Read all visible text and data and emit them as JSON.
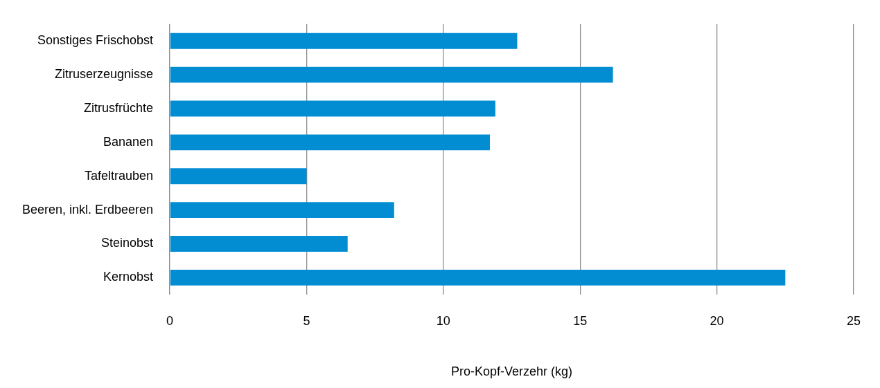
{
  "chart_data": {
    "type": "bar",
    "orientation": "horizontal",
    "xlabel": "Pro-Kopf-Verzehr (kg)",
    "categories": [
      "Sonstiges Frischobst",
      "Zitruserzeugnisse",
      "Zitrusfrüchte",
      "Bananen",
      "Tafeltrauben",
      "Beeren, inkl. Erdbeeren",
      "Steinobst",
      "Kernobst"
    ],
    "values": [
      12.7,
      16.2,
      11.9,
      11.7,
      5.0,
      8.2,
      6.5,
      22.5
    ],
    "color": "#028dd3",
    "xlim": [
      0,
      25
    ],
    "xticks": [
      0,
      5,
      10,
      15,
      20,
      25
    ],
    "grid": "x",
    "legend": false
  }
}
